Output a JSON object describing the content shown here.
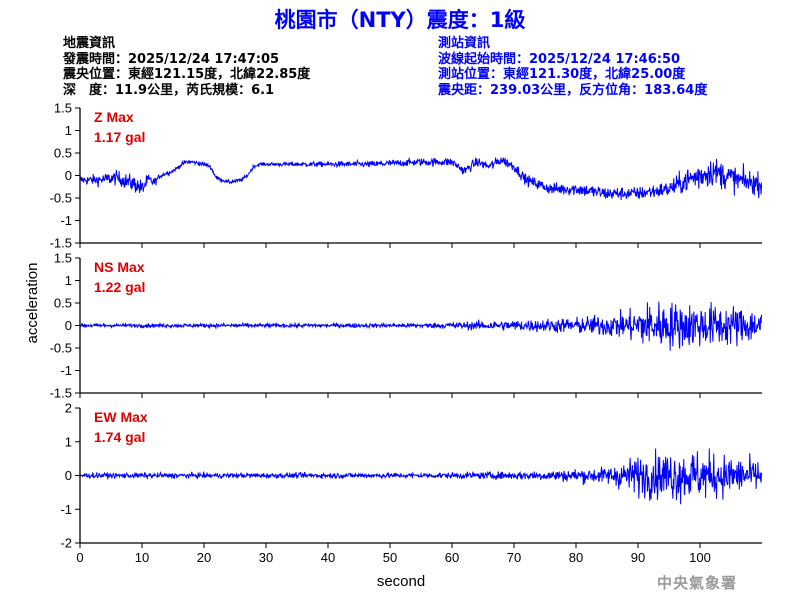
{
  "title": "桃園市（NTY）震度：1級",
  "event_info": {
    "heading": "地震資訊",
    "origin_time": "發震時間：2025/12/24 17:47:05",
    "epicenter": "震央位置：東經121.15度，北緯22.85度",
    "depth_magnitude": "深　度：11.9公里，芮氏規模：6.1"
  },
  "station_info": {
    "heading": "測站資訊",
    "wave_start": "波線起始時間：2025/12/24 17:46:50",
    "location": "測站位置：東經121.30度，北緯25.00度",
    "distance_azimuth": "震央距：239.03公里，反方位角：183.64度"
  },
  "credit": "中央氣象署",
  "colors": {
    "trace": "#0000ff",
    "max_label": "#e00000",
    "title": "#0000ff",
    "axes": "#000000"
  },
  "chart_data": {
    "type": "line",
    "xlabel": "second",
    "ylabel": "acceleration",
    "xlim": [
      0,
      110
    ],
    "xticks": [
      0,
      10,
      20,
      30,
      40,
      50,
      60,
      70,
      80,
      90,
      100
    ],
    "panels": [
      {
        "name": "Z",
        "max_label": "Z Max",
        "max_value": "1.17 gal",
        "ylim": [
          -1.5,
          1.5
        ],
        "yticks": [
          -1.5,
          -1,
          -0.5,
          0,
          0.5,
          1,
          1.5
        ],
        "trend": [
          [
            0,
            -0.1
          ],
          [
            3,
            -0.1
          ],
          [
            6,
            -0.05
          ],
          [
            9,
            -0.2
          ],
          [
            10,
            -0.3
          ],
          [
            11,
            -0.1
          ],
          [
            12,
            -0.15
          ],
          [
            13,
            0
          ],
          [
            15,
            0.1
          ],
          [
            16,
            0.2
          ],
          [
            17,
            0.3
          ],
          [
            18,
            0.3
          ],
          [
            20,
            0.25
          ],
          [
            21,
            0.2
          ],
          [
            22,
            -0.05
          ],
          [
            24,
            -0.15
          ],
          [
            26,
            -0.1
          ],
          [
            27,
            0
          ],
          [
            28,
            0.2
          ],
          [
            29,
            0.25
          ],
          [
            45,
            0.25
          ],
          [
            47,
            0.25
          ],
          [
            55,
            0.3
          ],
          [
            60,
            0.3
          ],
          [
            62,
            0.1
          ],
          [
            64,
            0.3
          ],
          [
            66,
            0.2
          ],
          [
            68,
            0.35
          ],
          [
            70,
            0.2
          ],
          [
            72,
            -0.1
          ],
          [
            76,
            -0.3
          ],
          [
            80,
            -0.3
          ],
          [
            85,
            -0.4
          ],
          [
            90,
            -0.4
          ],
          [
            95,
            -0.3
          ],
          [
            98,
            -0.1
          ],
          [
            102,
            0.1
          ],
          [
            104,
            0
          ],
          [
            106,
            -0.1
          ],
          [
            108,
            -0.15
          ],
          [
            110,
            -0.2
          ]
        ],
        "noise": [
          [
            0,
            0.1
          ],
          [
            10,
            0.2
          ],
          [
            13,
            0.05
          ],
          [
            29,
            0.04
          ],
          [
            60,
            0.1
          ],
          [
            72,
            0.12
          ],
          [
            80,
            0.15
          ],
          [
            90,
            0.15
          ],
          [
            95,
            0.18
          ],
          [
            100,
            0.35
          ],
          [
            105,
            0.3
          ],
          [
            110,
            0.25
          ]
        ]
      },
      {
        "name": "NS",
        "max_label": "NS Max",
        "max_value": "1.22 gal",
        "ylim": [
          -1.5,
          1.5
        ],
        "yticks": [
          -1.5,
          -1,
          -0.5,
          0,
          0.5,
          1,
          1.5
        ],
        "trend": [
          [
            0,
            0
          ],
          [
            110,
            0
          ]
        ],
        "noise": [
          [
            0,
            0.04
          ],
          [
            55,
            0.05
          ],
          [
            60,
            0.08
          ],
          [
            70,
            0.12
          ],
          [
            80,
            0.18
          ],
          [
            88,
            0.3
          ],
          [
            92,
            0.55
          ],
          [
            100,
            0.5
          ],
          [
            106,
            0.45
          ],
          [
            110,
            0.35
          ]
        ]
      },
      {
        "name": "EW",
        "max_label": "EW Max",
        "max_value": "1.74 gal",
        "ylim": [
          -2,
          2
        ],
        "yticks": [
          -2,
          -1,
          0,
          1,
          2
        ],
        "trend": [
          [
            0,
            0
          ],
          [
            110,
            0
          ]
        ],
        "noise": [
          [
            0,
            0.08
          ],
          [
            55,
            0.08
          ],
          [
            65,
            0.1
          ],
          [
            75,
            0.15
          ],
          [
            85,
            0.25
          ],
          [
            90,
            0.6
          ],
          [
            95,
            0.75
          ],
          [
            100,
            0.75
          ],
          [
            106,
            0.55
          ],
          [
            110,
            0.45
          ]
        ]
      }
    ]
  }
}
